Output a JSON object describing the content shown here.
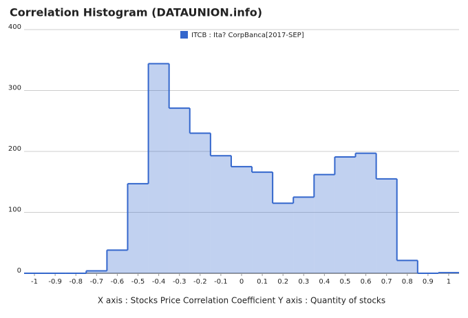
{
  "chart_data": {
    "type": "histogram",
    "title": "Correlation Histogram (DATAUNION.info)",
    "x_label": "X axis : Stocks Price Correlation Coefficient  Y axis : Quantity of stocks",
    "series": [
      {
        "name": "ITCB : Ita? CorpBanca[2017-SEP]",
        "color": "#3366cc",
        "bins": [
          -1.05,
          -0.95,
          -0.85,
          -0.75,
          -0.65,
          -0.55,
          -0.45,
          -0.35,
          -0.25,
          -0.15,
          -0.05,
          0.05,
          0.15,
          0.25,
          0.35,
          0.45,
          0.55,
          0.65,
          0.75,
          0.85,
          0.95,
          1.05
        ],
        "values": [
          0,
          0,
          0,
          4,
          38,
          147,
          344,
          271,
          230,
          193,
          175,
          166,
          115,
          125,
          162,
          191,
          197,
          155,
          21,
          0,
          1
        ]
      }
    ],
    "xlim": [
      -1.05,
      1.05
    ],
    "xticks": [
      -1,
      -0.9,
      -0.8,
      -0.7,
      -0.6,
      -0.5,
      -0.4,
      -0.3,
      -0.2,
      -0.1,
      0,
      0.1,
      0.2,
      0.3,
      0.4,
      0.5,
      0.6,
      0.7,
      0.8,
      0.9,
      1
    ],
    "ylim": [
      0,
      400
    ],
    "yticks": [
      0,
      100,
      200,
      300,
      400
    ],
    "grid": true,
    "legend": "top"
  }
}
